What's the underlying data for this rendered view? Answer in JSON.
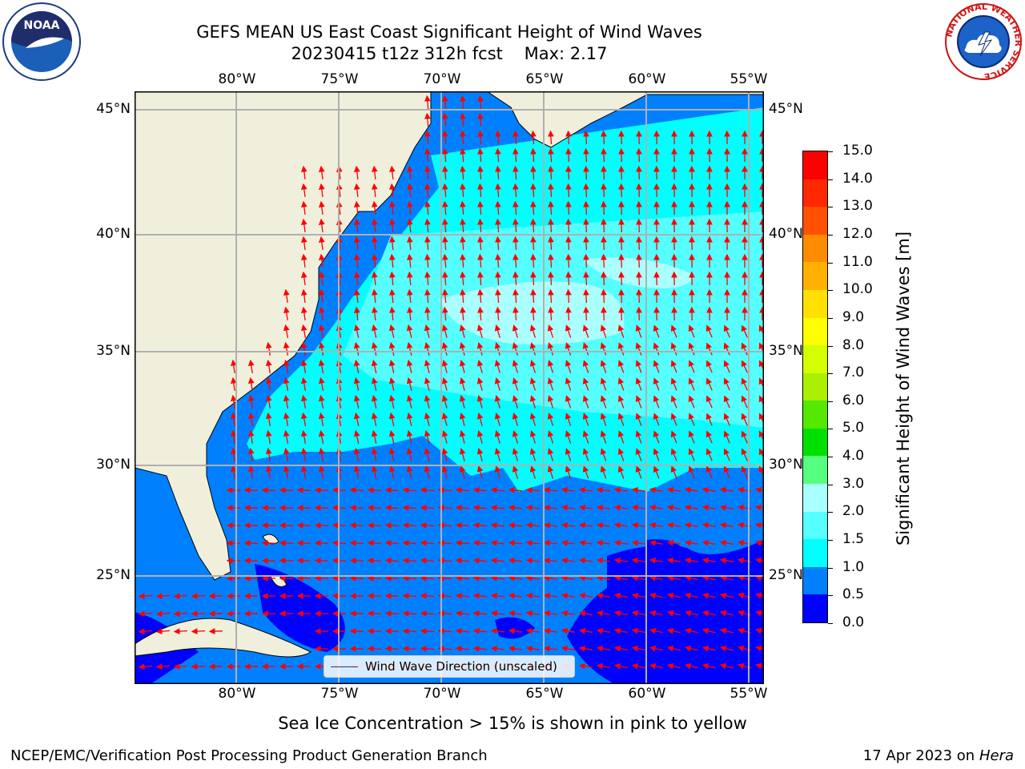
{
  "header": {
    "title_line1": "GEFS MEAN US East Coast Significant Height of Wind Waves",
    "title_line2": "20230415 t12z 312h fcst    Max: 2.17"
  },
  "logos": {
    "left": "noara-logo",
    "right": "national-weather-service-logo",
    "left_text": "NOAA",
    "right_ring_text": "NATIONAL WEATHER SERVICE"
  },
  "axes": {
    "lon_labels": [
      "80°W",
      "75°W",
      "70°W",
      "65°W",
      "60°W",
      "55°W"
    ],
    "lat_labels": [
      "45°N",
      "40°N",
      "35°N",
      "30°N",
      "25°N"
    ],
    "lon_range": [
      -85,
      -54
    ],
    "lat_range": [
      20.5,
      46
    ]
  },
  "colorbar": {
    "title": "Significant Height of Wind Waves [m]",
    "tick_labels": [
      "15.0",
      "14.0",
      "13.0",
      "12.0",
      "11.0",
      "10.0",
      "9.0",
      "8.0",
      "7.0",
      "6.0",
      "5.0",
      "4.0",
      "3.0",
      "2.0",
      "1.5",
      "1.0",
      "0.5",
      "0.0"
    ],
    "colors": [
      "#0000ff",
      "#0080ff",
      "#00ffff",
      "#55ffff",
      "#aaffff",
      "#55ff80",
      "#00e000",
      "#55e800",
      "#aaf000",
      "#d4ff00",
      "#ffff00",
      "#ffe000",
      "#ffb000",
      "#ff8c00",
      "#ff5000",
      "#ff2800",
      "#ff0000"
    ]
  },
  "legend": {
    "label": "Wind Wave Direction (unscaled)"
  },
  "notes": {
    "sea_ice": "Sea Ice Concentration > 15% is shown in pink to yellow"
  },
  "footer": {
    "left": "NCEP/EMC/Verification Post Processing Product Generation Branch",
    "date": "17 Apr 2023 on ",
    "machine": "Hera"
  }
}
